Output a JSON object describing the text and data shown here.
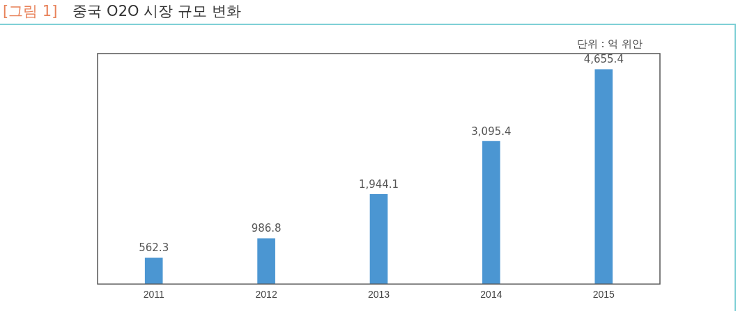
{
  "chart_data": {
    "type": "bar",
    "title": "중국 O2O 시장 규모 변화",
    "annotations": [
      "[그림 1]"
    ],
    "ylabel": "단위 : 억 위안",
    "categories": [
      "2011",
      "2012",
      "2013",
      "2014",
      "2015"
    ],
    "values": [
      562.3,
      986.8,
      1944.1,
      3095.4,
      4655.4
    ],
    "value_labels": [
      "562.3",
      "986.8",
      "1,944.1",
      "3,095.4",
      "4,655.4"
    ],
    "color": "#4b96d2",
    "tick_labels": "x",
    "grid": false,
    "legend": false
  }
}
